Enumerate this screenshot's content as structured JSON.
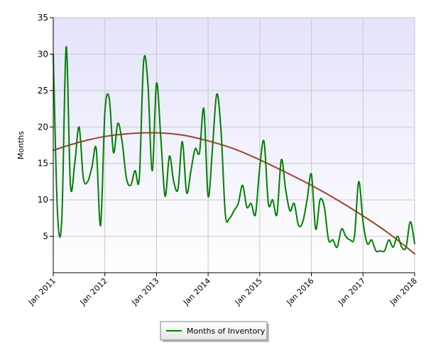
{
  "chart_data": {
    "type": "line",
    "title": "",
    "xlabel": "",
    "ylabel": "Months",
    "xlim": [
      "2011-01",
      "2018-01"
    ],
    "ylim": [
      0,
      35
    ],
    "y_ticks": [
      5,
      10,
      15,
      20,
      25,
      30,
      35
    ],
    "x_ticks": [
      "Jan 2011",
      "Jan 2012",
      "Jan 2013",
      "Jan 2014",
      "Jan 2015",
      "Jan 2016",
      "Jan 2017",
      "Jan 2018"
    ],
    "grid": true,
    "legend_position": "bottom-center",
    "series": [
      {
        "name": "Months of Inventory",
        "color": "#008000",
        "points": [
          [
            "2011-01",
            30.0
          ],
          [
            "2011-02",
            8.0
          ],
          [
            "2011-03",
            7.5
          ],
          [
            "2011-04",
            31.0
          ],
          [
            "2011-05",
            12.0
          ],
          [
            "2011-06",
            15.0
          ],
          [
            "2011-07",
            20.0
          ],
          [
            "2011-08",
            13.0
          ],
          [
            "2011-09",
            12.5
          ],
          [
            "2011-10",
            14.5
          ],
          [
            "2011-11",
            17.0
          ],
          [
            "2011-12",
            6.5
          ],
          [
            "2012-01",
            22.0
          ],
          [
            "2012-02",
            24.0
          ],
          [
            "2012-03",
            16.5
          ],
          [
            "2012-04",
            20.5
          ],
          [
            "2012-05",
            18.0
          ],
          [
            "2012-06",
            13.0
          ],
          [
            "2012-07",
            12.0
          ],
          [
            "2012-08",
            14.0
          ],
          [
            "2012-09",
            13.0
          ],
          [
            "2012-10",
            29.0
          ],
          [
            "2012-11",
            26.0
          ],
          [
            "2012-12",
            14.0
          ],
          [
            "2013-01",
            26.0
          ],
          [
            "2013-02",
            18.5
          ],
          [
            "2013-03",
            10.5
          ],
          [
            "2013-04",
            16.0
          ],
          [
            "2013-05",
            12.5
          ],
          [
            "2013-06",
            11.5
          ],
          [
            "2013-07",
            18.0
          ],
          [
            "2013-08",
            11.0
          ],
          [
            "2013-09",
            14.0
          ],
          [
            "2013-10",
            17.0
          ],
          [
            "2013-11",
            16.5
          ],
          [
            "2013-12",
            22.5
          ],
          [
            "2014-01",
            10.5
          ],
          [
            "2014-02",
            17.0
          ],
          [
            "2014-03",
            24.5
          ],
          [
            "2014-04",
            19.5
          ],
          [
            "2014-05",
            8.0
          ],
          [
            "2014-06",
            7.5
          ],
          [
            "2014-07",
            8.5
          ],
          [
            "2014-08",
            9.5
          ],
          [
            "2014-09",
            12.0
          ],
          [
            "2014-10",
            9.0
          ],
          [
            "2014-11",
            9.5
          ],
          [
            "2014-12",
            8.0
          ],
          [
            "2015-01",
            14.5
          ],
          [
            "2015-02",
            18.0
          ],
          [
            "2015-03",
            9.5
          ],
          [
            "2015-04",
            10.0
          ],
          [
            "2015-05",
            8.0
          ],
          [
            "2015-06",
            15.5
          ],
          [
            "2015-07",
            11.5
          ],
          [
            "2015-08",
            8.5
          ],
          [
            "2015-09",
            9.5
          ],
          [
            "2015-10",
            6.5
          ],
          [
            "2015-11",
            7.0
          ],
          [
            "2015-12",
            10.0
          ],
          [
            "2016-01",
            13.5
          ],
          [
            "2016-02",
            6.0
          ],
          [
            "2016-03",
            10.0
          ],
          [
            "2016-04",
            9.0
          ],
          [
            "2016-05",
            4.5
          ],
          [
            "2016-06",
            4.5
          ],
          [
            "2016-07",
            3.5
          ],
          [
            "2016-08",
            6.0
          ],
          [
            "2016-09",
            5.0
          ],
          [
            "2016-10",
            4.5
          ],
          [
            "2016-11",
            5.0
          ],
          [
            "2016-12",
            12.5
          ],
          [
            "2017-01",
            7.0
          ],
          [
            "2017-02",
            4.0
          ],
          [
            "2017-03",
            4.5
          ],
          [
            "2017-04",
            3.0
          ],
          [
            "2017-05",
            3.0
          ],
          [
            "2017-06",
            3.0
          ],
          [
            "2017-07",
            4.5
          ],
          [
            "2017-08",
            3.5
          ],
          [
            "2017-09",
            5.0
          ],
          [
            "2017-10",
            3.5
          ],
          [
            "2017-11",
            3.5
          ],
          [
            "2017-12",
            7.0
          ],
          [
            "2018-01",
            4.0
          ]
        ]
      },
      {
        "name": "",
        "color": "#a0412d",
        "legend": false,
        "points": [
          [
            "2011-01",
            16.8
          ],
          [
            "2011-07",
            17.9
          ],
          [
            "2012-01",
            18.7
          ],
          [
            "2012-07",
            19.1
          ],
          [
            "2013-01",
            19.2
          ],
          [
            "2013-07",
            18.9
          ],
          [
            "2014-01",
            18.1
          ],
          [
            "2014-07",
            17.0
          ],
          [
            "2015-01",
            15.5
          ],
          [
            "2015-07",
            13.8
          ],
          [
            "2016-01",
            12.0
          ],
          [
            "2016-07",
            10.0
          ],
          [
            "2017-01",
            7.8
          ],
          [
            "2017-07",
            5.4
          ],
          [
            "2018-01",
            2.6
          ]
        ]
      }
    ]
  }
}
